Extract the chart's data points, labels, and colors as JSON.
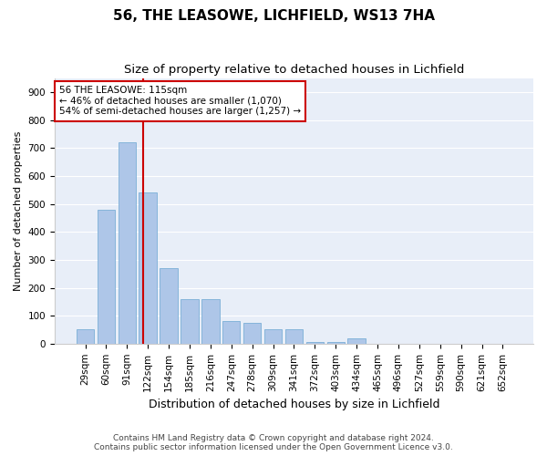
{
  "title1": "56, THE LEASOWE, LICHFIELD, WS13 7HA",
  "title2": "Size of property relative to detached houses in Lichfield",
  "xlabel": "Distribution of detached houses by size in Lichfield",
  "ylabel": "Number of detached properties",
  "categories": [
    "29sqm",
    "60sqm",
    "91sqm",
    "122sqm",
    "154sqm",
    "185sqm",
    "216sqm",
    "247sqm",
    "278sqm",
    "309sqm",
    "341sqm",
    "372sqm",
    "403sqm",
    "434sqm",
    "465sqm",
    "496sqm",
    "527sqm",
    "559sqm",
    "590sqm",
    "621sqm",
    "652sqm"
  ],
  "values": [
    50,
    480,
    720,
    540,
    270,
    160,
    160,
    80,
    75,
    50,
    50,
    5,
    5,
    20,
    0,
    0,
    0,
    0,
    0,
    0,
    0
  ],
  "bar_color": "#aec6e8",
  "bar_edge_color": "#7aaed6",
  "vline_color": "#cc0000",
  "ylim": [
    0,
    950
  ],
  "yticks": [
    0,
    100,
    200,
    300,
    400,
    500,
    600,
    700,
    800,
    900
  ],
  "annotation_text": "56 THE LEASOWE: 115sqm\n← 46% of detached houses are smaller (1,070)\n54% of semi-detached houses are larger (1,257) →",
  "annotation_box_color": "#ffffff",
  "annotation_box_edge": "#cc0000",
  "footer": "Contains HM Land Registry data © Crown copyright and database right 2024.\nContains public sector information licensed under the Open Government Licence v3.0.",
  "bg_color": "#e8eef8",
  "grid_color": "#ffffff",
  "fig_bg_color": "#ffffff",
  "title_fontsize": 11,
  "subtitle_fontsize": 9.5,
  "ylabel_fontsize": 8,
  "xlabel_fontsize": 9,
  "tick_fontsize": 7.5,
  "footer_fontsize": 6.5,
  "ann_fontsize": 7.5
}
